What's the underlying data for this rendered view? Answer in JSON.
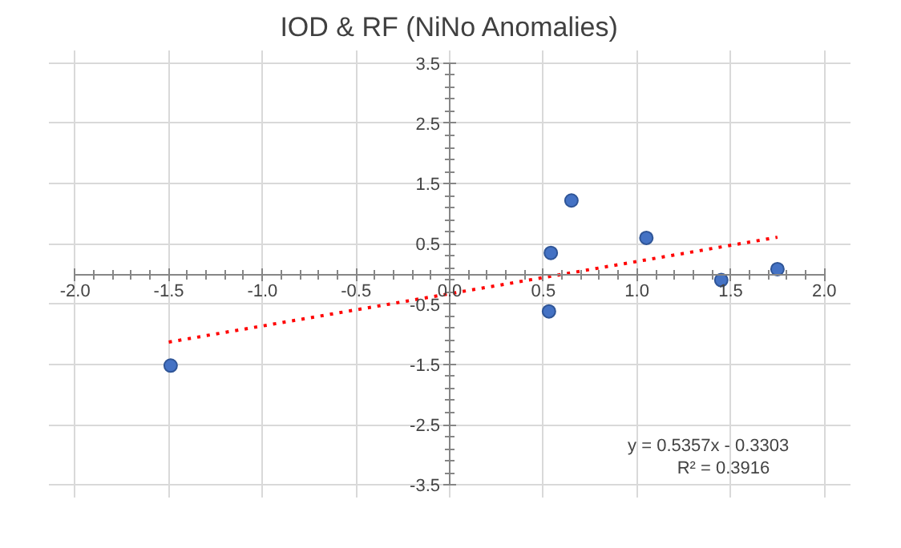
{
  "chart_data": {
    "type": "scatter",
    "title": "IOD & RF (NiNo Anomalies)",
    "x": [
      -1.49,
      0.53,
      0.54,
      0.65,
      1.05,
      1.45,
      1.75
    ],
    "series": [
      {
        "color": "#4472c4",
        "values": [
          -1.52,
          -0.62,
          0.35,
          1.22,
          0.6,
          -0.1,
          0.08
        ]
      },
      {
        "type": "line",
        "color": "#ff0000",
        "line_style": "dotted",
        "marker": "none",
        "x": [
          -1.5,
          1.75
        ],
        "values": [
          -1.13,
          0.61
        ]
      }
    ],
    "marker": "circle",
    "xlim": [
      -2,
      2
    ],
    "ylim": [
      -3.5,
      3.5
    ],
    "xticks": [
      {
        "value": -2,
        "label": "-2.0"
      },
      -1.5,
      {
        "value": -1,
        "label": "-1.0"
      },
      -0.5,
      {
        "value": 0,
        "label": "0.0"
      },
      0.5,
      {
        "value": 1,
        "label": "1.0"
      },
      1.5,
      {
        "value": 2,
        "label": "2.0"
      }
    ],
    "yticks": [
      -3.5,
      -2.5,
      -1.5,
      -0.5,
      0.5,
      1.5,
      2.5,
      3.5
    ],
    "grid": true,
    "annotations": [
      "y = 0.5357x - 0.3303",
      "R² = 0.3916"
    ]
  }
}
